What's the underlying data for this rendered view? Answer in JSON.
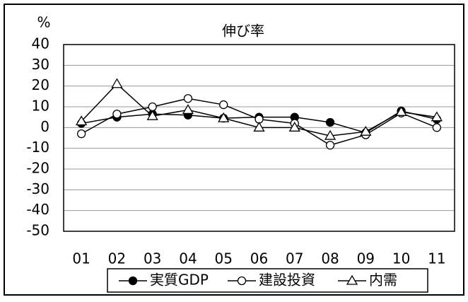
{
  "chart_data": {
    "type": "line",
    "title": "伸び率",
    "y_label": "%",
    "categories": [
      "01",
      "02",
      "03",
      "04",
      "05",
      "06",
      "07",
      "08",
      "09",
      "10",
      "11"
    ],
    "series": [
      {
        "name": "実質GDP",
        "color": "#000000",
        "marker": "circle-filled",
        "values": [
          2,
          5,
          6.5,
          6,
          4.5,
          5,
          5,
          2.5,
          -2.5,
          8,
          4
        ]
      },
      {
        "name": "建設投資",
        "color": "#000000",
        "marker": "circle-open",
        "values": [
          -3,
          6.5,
          10,
          14,
          11,
          4,
          2,
          -8.5,
          -3.5,
          7,
          0
        ]
      },
      {
        "name": "内需",
        "color": "#000000",
        "marker": "triangle-open",
        "values": [
          3,
          21,
          5.5,
          8.5,
          4.5,
          0,
          0,
          -4,
          -2,
          7.5,
          5
        ]
      }
    ],
    "ylim": [
      -50,
      40
    ],
    "yticks": [
      40,
      30,
      20,
      10,
      0,
      -10,
      -20,
      -30,
      -40,
      -50
    ],
    "grid": true,
    "legend": "bottom"
  }
}
